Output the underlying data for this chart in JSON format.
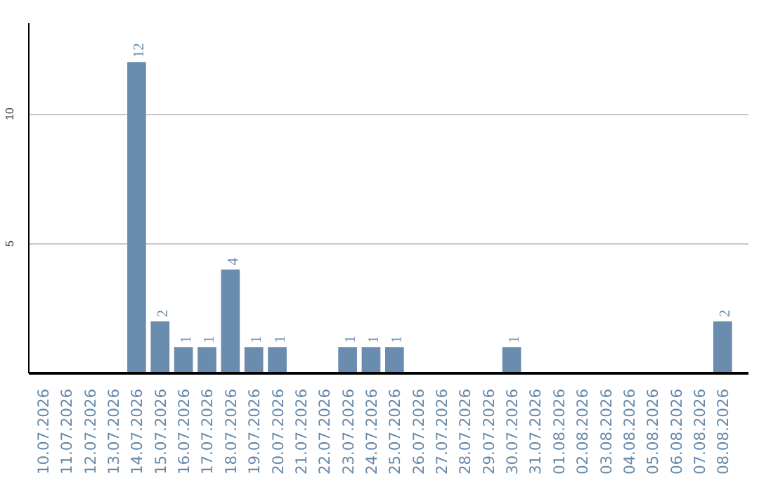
{
  "chart_data": {
    "type": "bar",
    "categories": [
      "10.07.2026",
      "11.07.2026",
      "12.07.2026",
      "13.07.2026",
      "14.07.2026",
      "15.07.2026",
      "16.07.2026",
      "17.07.2026",
      "18.07.2026",
      "19.07.2026",
      "20.07.2026",
      "21.07.2026",
      "22.07.2026",
      "23.07.2026",
      "24.07.2026",
      "25.07.2026",
      "26.07.2026",
      "27.07.2026",
      "28.07.2026",
      "29.07.2026",
      "30.07.2026",
      "31.07.2026",
      "01.08.2026",
      "02.08.2026",
      "03.08.2026",
      "04.08.2026",
      "05.08.2026",
      "06.08.2026",
      "07.08.2026",
      "08.08.2026"
    ],
    "values": [
      0,
      0,
      0,
      0,
      12,
      2,
      1,
      1,
      4,
      1,
      1,
      0,
      0,
      1,
      1,
      1,
      0,
      0,
      0,
      0,
      1,
      0,
      0,
      0,
      0,
      0,
      0,
      0,
      0,
      2
    ],
    "value_labels": [
      null,
      null,
      null,
      null,
      "12",
      "2",
      "1",
      "1",
      "4",
      "1",
      "1",
      null,
      null,
      "1",
      "1",
      "1",
      null,
      null,
      null,
      null,
      "1",
      null,
      null,
      null,
      null,
      null,
      null,
      null,
      null,
      "2"
    ],
    "color": "#6a8caf",
    "ylim": [
      0,
      13.5
    ],
    "yticks": [
      5,
      10
    ],
    "grid": "y"
  }
}
